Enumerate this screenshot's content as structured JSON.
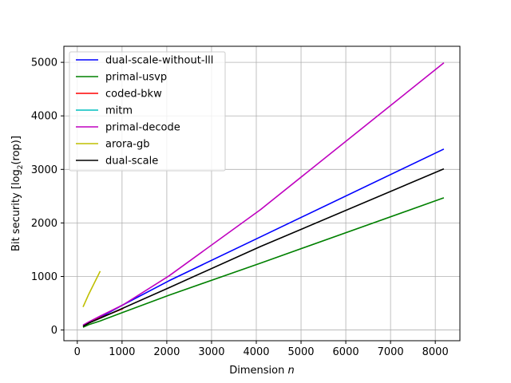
{
  "chart_data": {
    "type": "line",
    "title": "",
    "xlabel": "Dimension",
    "xlabel_var": "n",
    "ylabel_prefix": "Bit security [log",
    "ylabel_sub": "2",
    "ylabel_suffix": "(rop)]",
    "xlim": [
      -300,
      8550
    ],
    "ylim": [
      -200,
      5300
    ],
    "xticks": [
      0,
      1000,
      2000,
      3000,
      4000,
      5000,
      6000,
      7000,
      8000
    ],
    "yticks": [
      0,
      1000,
      2000,
      3000,
      4000,
      5000
    ],
    "grid": true,
    "legend_position": "top-left",
    "series": [
      {
        "name": "dual-scale-without-lll",
        "color": "#0000ff",
        "points": [
          [
            128,
            90
          ],
          [
            256,
            140
          ],
          [
            512,
            240
          ],
          [
            1024,
            470
          ],
          [
            2048,
            920
          ],
          [
            4096,
            1740
          ],
          [
            8192,
            3380
          ]
        ]
      },
      {
        "name": "primal-usvp",
        "color": "#008000",
        "points": [
          [
            128,
            50
          ],
          [
            256,
            100
          ],
          [
            512,
            170
          ],
          [
            1024,
            330
          ],
          [
            2048,
            650
          ],
          [
            4096,
            1250
          ],
          [
            8192,
            2470
          ]
        ]
      },
      {
        "name": "coded-bkw",
        "color": "#ff0000",
        "points": [
          [
            128,
            70
          ],
          [
            256,
            130
          ],
          [
            512,
            230
          ],
          [
            1024,
            400
          ]
        ]
      },
      {
        "name": "mitm",
        "color": "#00bfbf",
        "points": []
      },
      {
        "name": "primal-decode",
        "color": "#bf00bf",
        "points": [
          [
            128,
            90
          ],
          [
            256,
            150
          ],
          [
            512,
            260
          ],
          [
            1024,
            470
          ],
          [
            2048,
            1010
          ],
          [
            4096,
            2250
          ],
          [
            8192,
            4990
          ]
        ]
      },
      {
        "name": "arora-gb",
        "color": "#bfbf00",
        "points": [
          [
            128,
            430
          ],
          [
            256,
            670
          ],
          [
            512,
            1100
          ]
        ]
      },
      {
        "name": "dual-scale",
        "color": "#000000",
        "points": [
          [
            128,
            70
          ],
          [
            256,
            130
          ],
          [
            512,
            220
          ],
          [
            1024,
            410
          ],
          [
            2048,
            790
          ],
          [
            4096,
            1560
          ],
          [
            8192,
            3010
          ]
        ]
      }
    ]
  }
}
